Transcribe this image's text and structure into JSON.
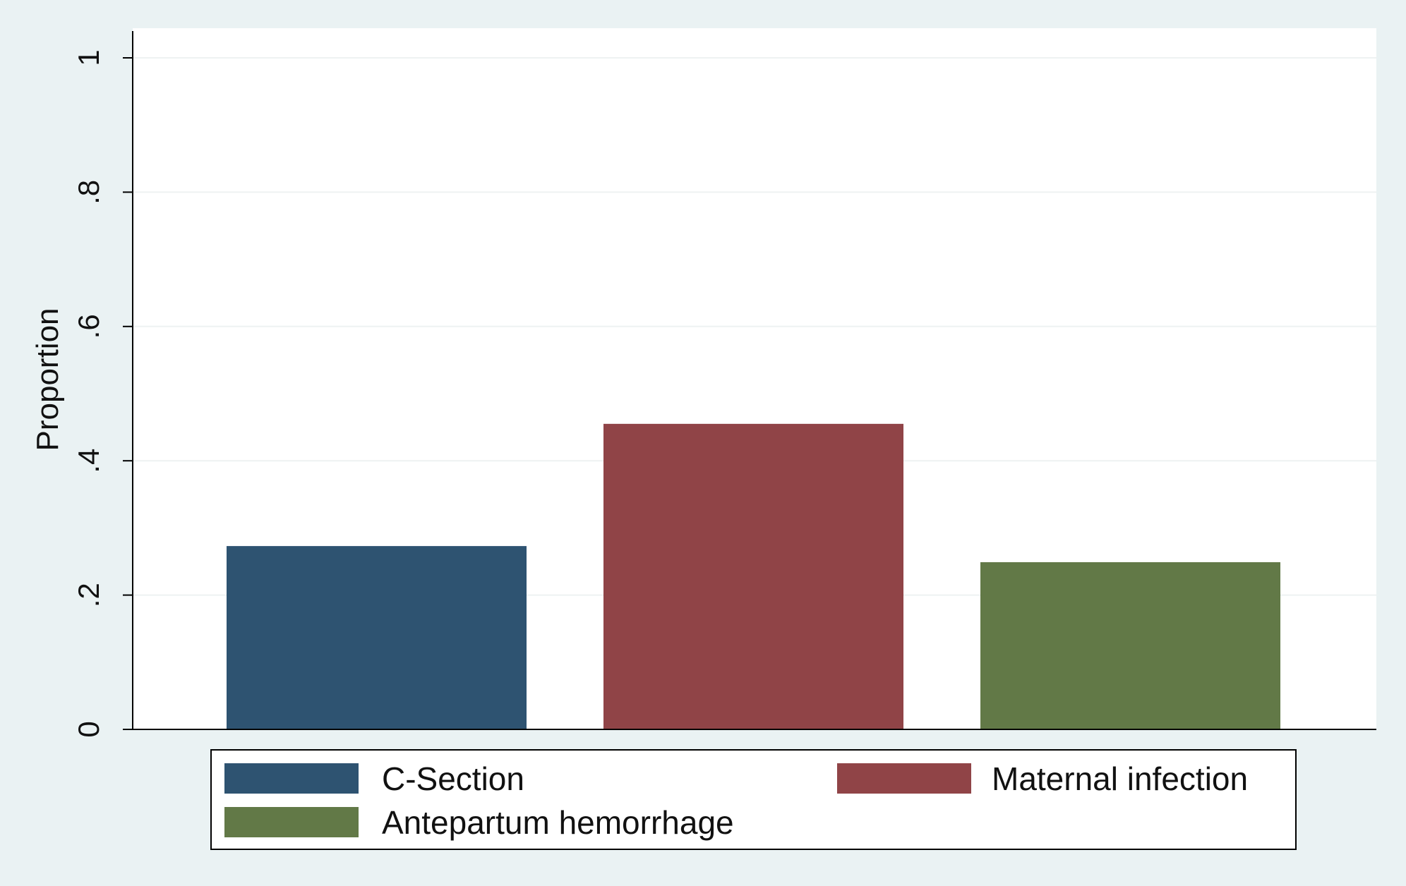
{
  "chart_data": {
    "type": "bar",
    "categories": [
      "C-Section",
      "Maternal infection",
      "Antepartum hemorrhage"
    ],
    "values": [
      0.273,
      0.455,
      0.249
    ],
    "colors": [
      "#2e5371",
      "#904447",
      "#627947"
    ],
    "ylabel": "Proportion",
    "ylim": [
      0,
      1
    ],
    "yticks": [
      0,
      0.2,
      0.4,
      0.6,
      0.8,
      1
    ],
    "ytick_labels": [
      "0",
      ".2",
      ".4",
      ".6",
      ".8",
      "1"
    ],
    "grid": true,
    "legend": {
      "position": "bottom",
      "columns": 2,
      "entries": [
        "C-Section",
        "Maternal infection",
        "Antepartum hemorrhage"
      ]
    },
    "background_color": "#eaf2f3",
    "plot_background_color": "#ffffff"
  }
}
